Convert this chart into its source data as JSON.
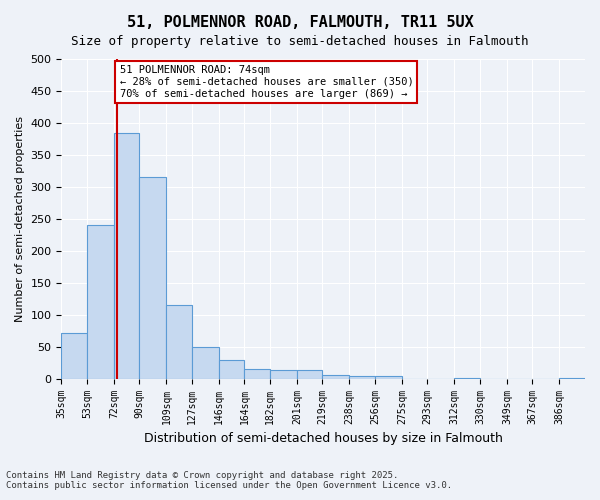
{
  "title_line1": "51, POLMENNOR ROAD, FALMOUTH, TR11 5UX",
  "title_line2": "Size of property relative to semi-detached houses in Falmouth",
  "xlabel": "Distribution of semi-detached houses by size in Falmouth",
  "ylabel": "Number of semi-detached properties",
  "bins": [
    35,
    53,
    72,
    90,
    109,
    127,
    146,
    164,
    182,
    201,
    219,
    238,
    256,
    275,
    293,
    312,
    330,
    349,
    367,
    386,
    404
  ],
  "counts": [
    72,
    240,
    385,
    315,
    115,
    50,
    30,
    15,
    13,
    13,
    5,
    4,
    4,
    0,
    0,
    1,
    0,
    0,
    0,
    1
  ],
  "bar_color": "#c6d9f0",
  "bar_edge_color": "#5b9bd5",
  "property_size": 74,
  "annotation_text": "51 POLMENNOR ROAD: 74sqm\n← 28% of semi-detached houses are smaller (350)\n70% of semi-detached houses are larger (869) →",
  "annotation_box_color": "#ffffff",
  "annotation_box_edge_color": "#cc0000",
  "vline_color": "#cc0000",
  "footer_text": "Contains HM Land Registry data © Crown copyright and database right 2025.\nContains public sector information licensed under the Open Government Licence v3.0.",
  "ylim": [
    0,
    500
  ],
  "yticks": [
    0,
    50,
    100,
    150,
    200,
    250,
    300,
    350,
    400,
    450,
    500
  ],
  "bg_color": "#eef2f8",
  "plot_bg_color": "#eef2f8",
  "grid_color": "#ffffff"
}
